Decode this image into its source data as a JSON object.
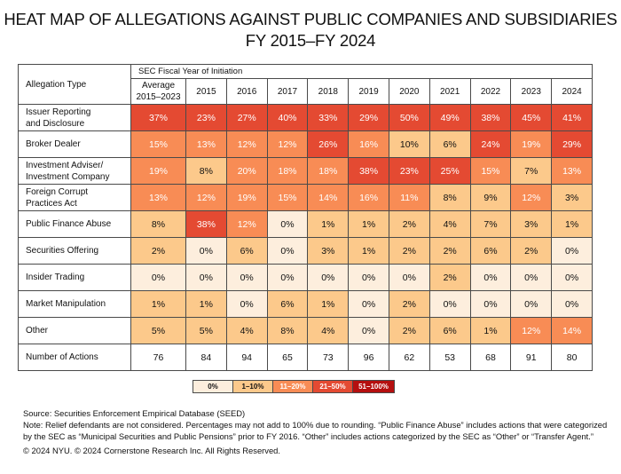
{
  "title_line1": "HEAT MAP OF ALLEGATIONS AGAINST PUBLIC COMPANIES AND SUBSIDIARIES",
  "title_line2": "FY 2015–FY 2024",
  "header": {
    "group_label": "SEC Fiscal Year of Initiation",
    "row_label_header": "Allegation Type",
    "avg_line1": "Average",
    "avg_line2": "2015–2023",
    "years": [
      "2015",
      "2016",
      "2017",
      "2018",
      "2019",
      "2020",
      "2021",
      "2022",
      "2023",
      "2024"
    ]
  },
  "chart_data": {
    "type": "heatmap",
    "title": "Heat Map of Allegations Against Public Companies and Subsidiaries FY 2015–FY 2024",
    "xlabel": "SEC Fiscal Year of Initiation",
    "ylabel": "Allegation Type",
    "columns": [
      "Average 2015–2023",
      "2015",
      "2016",
      "2017",
      "2018",
      "2019",
      "2020",
      "2021",
      "2022",
      "2023",
      "2024"
    ],
    "unit": "%",
    "rows": [
      {
        "label_line1": "Issuer Reporting",
        "label_line2": "and Disclosure",
        "label": "Issuer Reporting and Disclosure",
        "values": [
          37,
          23,
          27,
          40,
          33,
          29,
          50,
          49,
          38,
          45,
          41
        ]
      },
      {
        "label_line1": "Broker Dealer",
        "label_line2": "",
        "label": "Broker Dealer",
        "values": [
          15,
          13,
          12,
          12,
          26,
          16,
          10,
          6,
          24,
          19,
          29
        ]
      },
      {
        "label_line1": "Investment Adviser/",
        "label_line2": "Investment Company",
        "label": "Investment Adviser/Investment Company",
        "values": [
          19,
          8,
          20,
          18,
          18,
          38,
          23,
          25,
          15,
          7,
          13
        ]
      },
      {
        "label_line1": "Foreign Corrupt",
        "label_line2": "Practices Act",
        "label": "Foreign Corrupt Practices Act",
        "values": [
          13,
          12,
          19,
          15,
          14,
          16,
          11,
          8,
          9,
          12,
          3
        ]
      },
      {
        "label_line1": "Public Finance Abuse",
        "label_line2": "",
        "label": "Public Finance Abuse",
        "values": [
          8,
          38,
          12,
          0,
          1,
          1,
          2,
          4,
          7,
          3,
          1
        ]
      },
      {
        "label_line1": "Securities Offering",
        "label_line2": "",
        "label": "Securities Offering",
        "values": [
          2,
          0,
          6,
          0,
          3,
          1,
          2,
          2,
          6,
          2,
          0
        ]
      },
      {
        "label_line1": "Insider Trading",
        "label_line2": "",
        "label": "Insider Trading",
        "values": [
          0,
          0,
          0,
          0,
          0,
          0,
          0,
          2,
          0,
          0,
          0
        ]
      },
      {
        "label_line1": "Market Manipulation",
        "label_line2": "",
        "label": "Market Manipulation",
        "values": [
          1,
          1,
          0,
          6,
          1,
          0,
          2,
          0,
          0,
          0,
          0
        ]
      },
      {
        "label_line1": "Other",
        "label_line2": "",
        "label": "Other",
        "values": [
          5,
          5,
          4,
          8,
          4,
          0,
          2,
          6,
          1,
          12,
          14
        ]
      }
    ],
    "actions_row": {
      "label": "Number of Actions",
      "values": [
        76,
        84,
        94,
        65,
        73,
        96,
        62,
        53,
        68,
        91,
        80
      ]
    },
    "legend": [
      {
        "label": "0%",
        "min": 0,
        "max": 0,
        "color": "#fdeedd"
      },
      {
        "label": "1–10%",
        "min": 1,
        "max": 10,
        "color": "#fcc98b"
      },
      {
        "label": "11–20%",
        "min": 11,
        "max": 20,
        "color": "#f88c55"
      },
      {
        "label": "21–50%",
        "min": 21,
        "max": 50,
        "color": "#e44a32"
      },
      {
        "label": "51–100%",
        "min": 51,
        "max": 100,
        "color": "#b50f0f"
      }
    ],
    "legend_position": "bottom-center"
  },
  "notes": {
    "source": "Source: Securities Enforcement Empirical Database (SEED)",
    "note": "Note: Relief defendants are not considered. Percentages may not add to 100% due to rounding. “Public Finance Abuse” includes actions that were categorized by the SEC as “Municipal Securities and Public Pensions” prior to FY 2016. “Other” includes actions categorized by the SEC as “Other” or “Transfer Agent.”",
    "copyright": "© 2024 NYU. © 2024 Cornerstone Research Inc. All Rights Reserved."
  }
}
